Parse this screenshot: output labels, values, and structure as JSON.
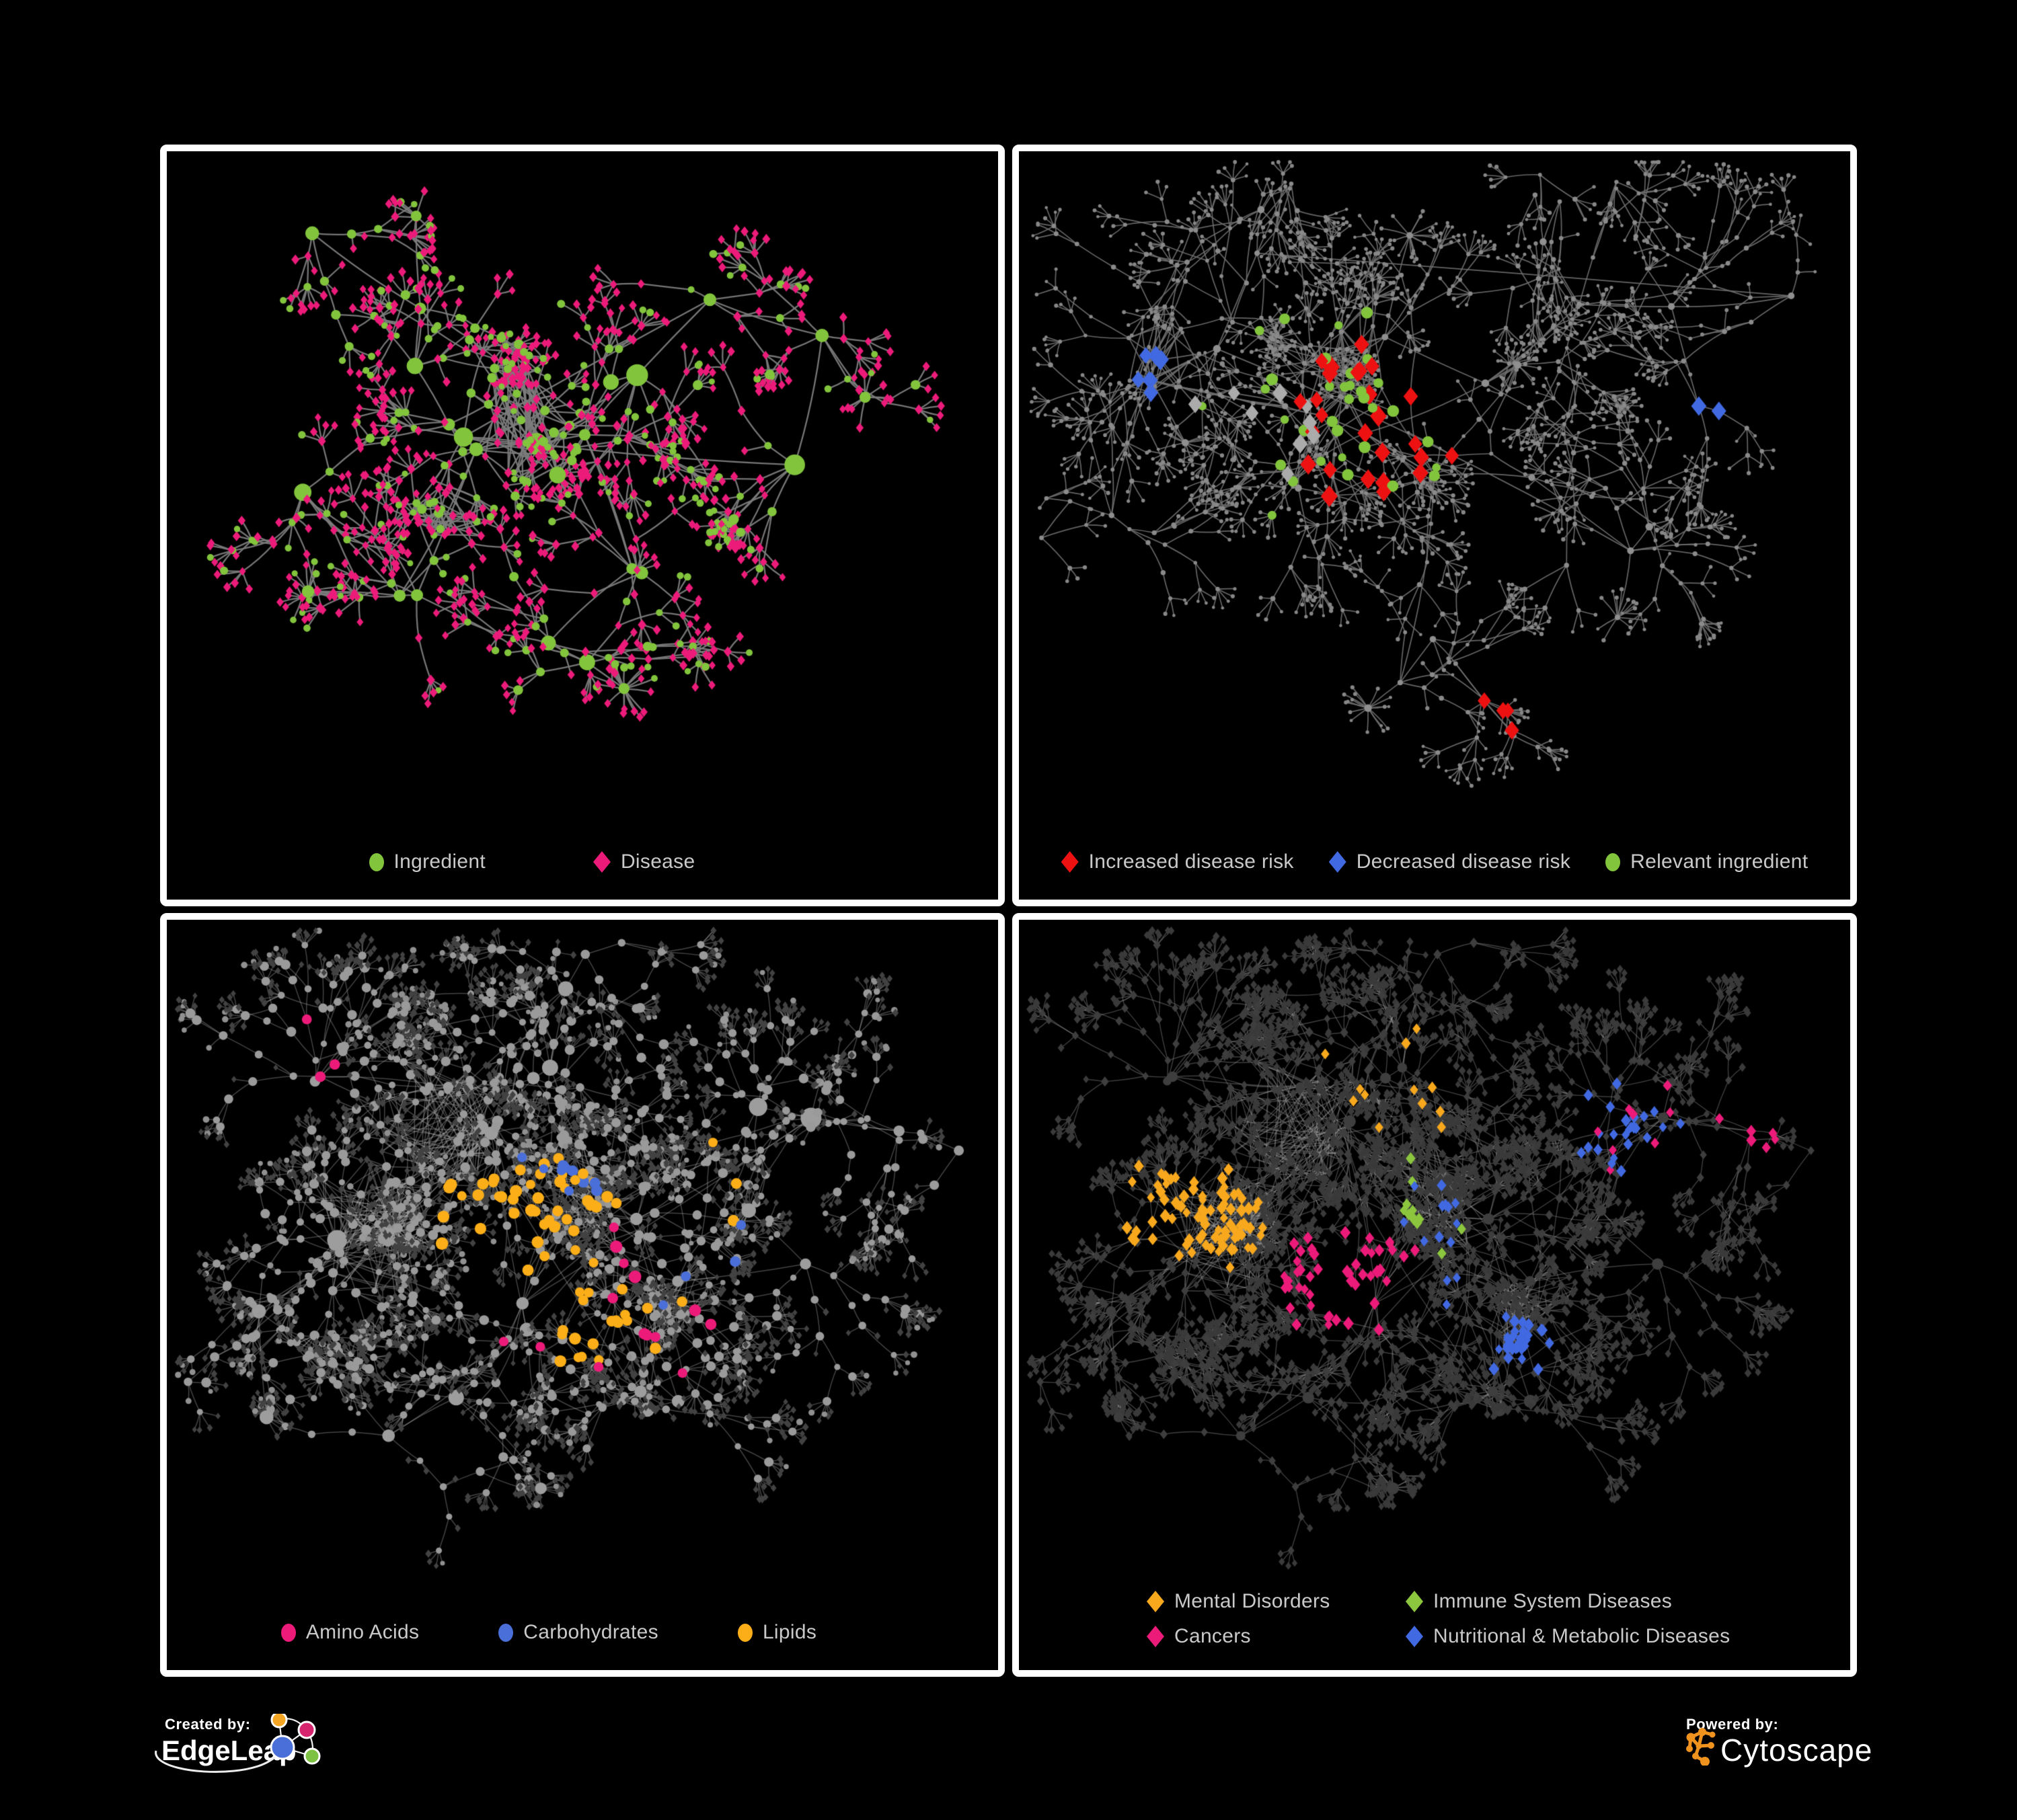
{
  "figure": {
    "background": "#000000",
    "panel_border_color": "#ffffff",
    "legend_text_color": "#c9c9c9"
  },
  "panels": [
    {
      "id": "ingredient-disease-network",
      "legend": {
        "items": [
          {
            "label": "Ingredient",
            "shape": "circle",
            "color": "#82C43C"
          },
          {
            "label": "Disease",
            "shape": "diamond",
            "color": "#EC1B7A"
          }
        ]
      }
    },
    {
      "id": "disease-risk-network",
      "legend": {
        "items": [
          {
            "label": "Increased disease risk",
            "shape": "diamond",
            "color": "#EE1111"
          },
          {
            "label": "Decreased disease risk",
            "shape": "diamond",
            "color": "#4169E1"
          },
          {
            "label": "Relevant ingredient",
            "shape": "circle",
            "color": "#82C43C"
          }
        ]
      }
    },
    {
      "id": "nutrient-class-network",
      "legend": {
        "items": [
          {
            "label": "Amino Acids",
            "shape": "circle",
            "color": "#EC1B7A"
          },
          {
            "label": "Carbohydrates",
            "shape": "circle",
            "color": "#4A6FD8"
          },
          {
            "label": "Lipids",
            "shape": "circle",
            "color": "#FBAE17"
          }
        ]
      }
    },
    {
      "id": "disease-category-network",
      "legend": {
        "columns": 2,
        "items": [
          {
            "label": "Mental Disorders",
            "shape": "diamond",
            "color": "#F7A81D"
          },
          {
            "label": "Immune System Diseases",
            "shape": "diamond",
            "color": "#8CC63E"
          },
          {
            "label": "Cancers",
            "shape": "diamond",
            "color": "#EC1B7A"
          },
          {
            "label": "Nutritional & Metabolic Diseases",
            "shape": "diamond",
            "color": "#4169E1"
          }
        ]
      }
    }
  ],
  "footer": {
    "created_by": {
      "label": "Created by:",
      "brand": "EdgeLeap"
    },
    "powered_by": {
      "label": "Powered by:",
      "brand": "Cytoscape"
    },
    "edgeleap_logo_colors": {
      "orange": "#F5A623",
      "pink": "#D6246E",
      "blue": "#4A6FD8",
      "green": "#7DC242"
    },
    "cytoscape_logo_color": "#F0931E"
  }
}
